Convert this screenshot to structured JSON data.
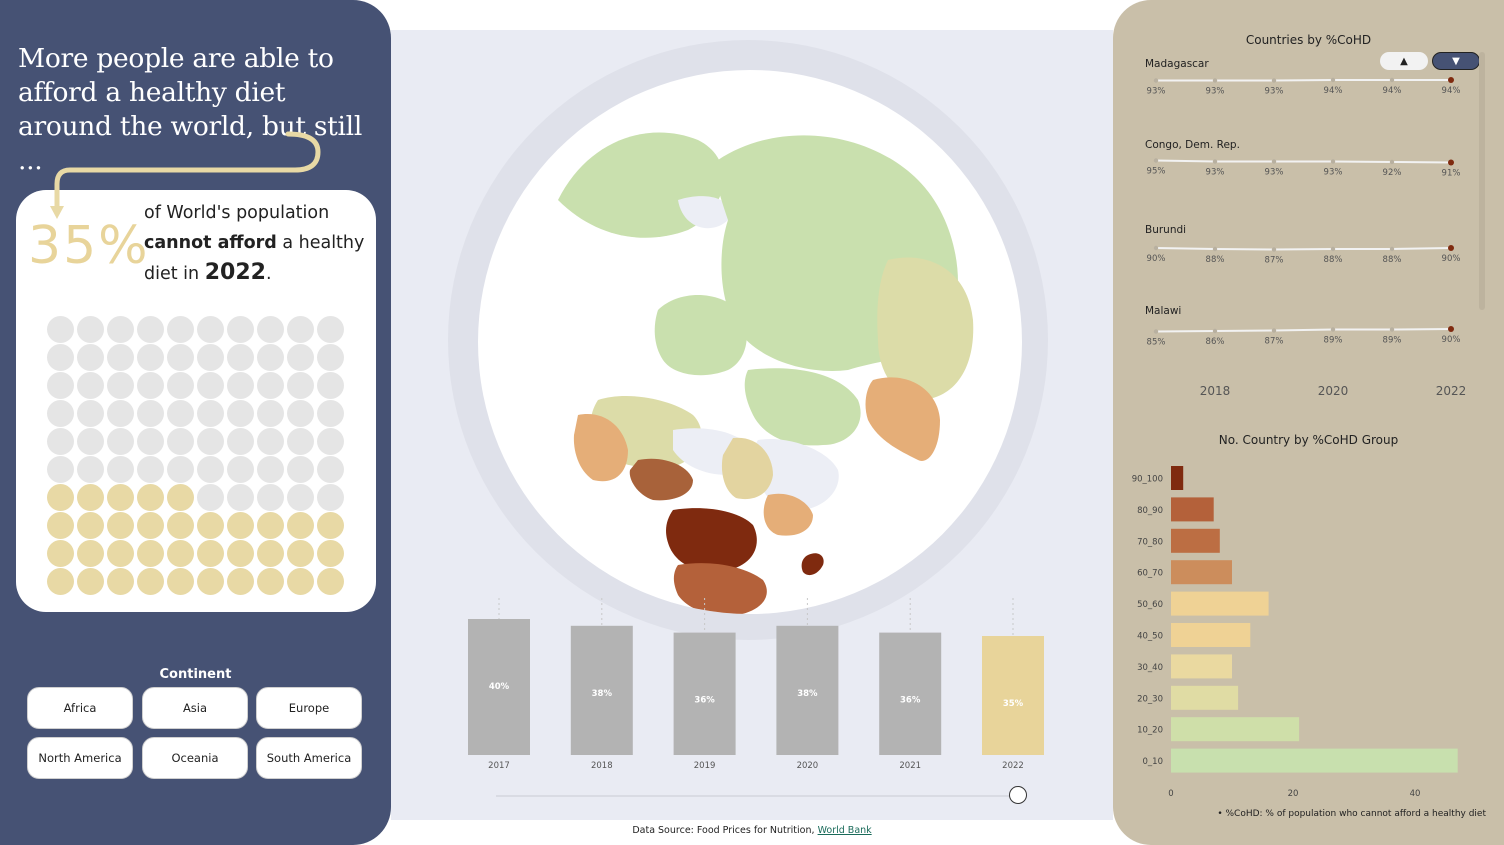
{
  "headline": "More people are able to afford a healthy diet around the world, but still ...",
  "stat": {
    "value": "35%",
    "text_pre": "of World's population",
    "text_bold": "cannot afford",
    "text_mid": "a healthy diet in",
    "year": "2022",
    "text_end": ".",
    "filled_dots": 35,
    "total_dots": 100
  },
  "continent": {
    "title": "Continent",
    "buttons": [
      "Africa",
      "Asia",
      "Europe",
      "North America",
      "Oceania",
      "South America"
    ]
  },
  "colors": {
    "panel_blue": "#465274",
    "panel_tan": "#c9bfa9",
    "highlight": "#e8d49a",
    "grey_bar": "#b3b3b3"
  },
  "chart_data": [
    {
      "type": "bar",
      "title": "",
      "categories": [
        "2017",
        "2018",
        "2019",
        "2020",
        "2021",
        "2022"
      ],
      "values": [
        40,
        38,
        36,
        38,
        36,
        35
      ],
      "labels": [
        "40%",
        "38%",
        "36%",
        "38%",
        "36%",
        "35%"
      ],
      "highlight": "2022"
    },
    {
      "type": "line",
      "title": "Countries by %CoHD",
      "x": [
        2017,
        2018,
        2019,
        2020,
        2021,
        2022
      ],
      "x_ticks": [
        "2018",
        "2020",
        "2022"
      ],
      "series": [
        {
          "name": "Madagascar",
          "values": [
            93,
            93,
            93,
            94,
            94,
            94
          ],
          "labels": [
            "93%",
            "93%",
            "93%",
            "94%",
            "94%",
            "94%"
          ]
        },
        {
          "name": "Congo, Dem. Rep.",
          "values": [
            95,
            93,
            93,
            93,
            92,
            91
          ],
          "labels": [
            "95%",
            "93%",
            "93%",
            "93%",
            "92%",
            "91%"
          ]
        },
        {
          "name": "Burundi",
          "values": [
            90,
            88,
            87,
            88,
            88,
            90
          ],
          "labels": [
            "90%",
            "88%",
            "87%",
            "88%",
            "88%",
            "90%"
          ]
        },
        {
          "name": "Malawi",
          "values": [
            85,
            86,
            87,
            89,
            89,
            90
          ],
          "labels": [
            "85%",
            "86%",
            "87%",
            "89%",
            "89%",
            "90%"
          ]
        }
      ],
      "sort_buttons": [
        "▲",
        "▼"
      ]
    },
    {
      "type": "bar",
      "orientation": "horizontal",
      "title": "No. Country by %CoHD Group",
      "categories": [
        "90_100",
        "80_90",
        "70_80",
        "60_70",
        "50_60",
        "40_50",
        "30_40",
        "20_30",
        "10_20",
        "0_10"
      ],
      "values": [
        2,
        7,
        8,
        10,
        16,
        13,
        10,
        11,
        21,
        47
      ],
      "colors": [
        "#7f2a0f",
        "#b4613a",
        "#bc6e43",
        "#cc8d5c",
        "#efd295",
        "#efd295",
        "#ead9a0",
        "#e0dca4",
        "#cfdfa9",
        "#c8e0ae"
      ],
      "x_ticks": [
        "0",
        "20",
        "40"
      ],
      "xlim": [
        0,
        48
      ]
    }
  ],
  "footnote": "• %CoHD: % of population who cannot afford a healthy diet",
  "source": {
    "prefix": "Data Source: Food Prices for Nutrition,",
    "link": "World Bank"
  }
}
